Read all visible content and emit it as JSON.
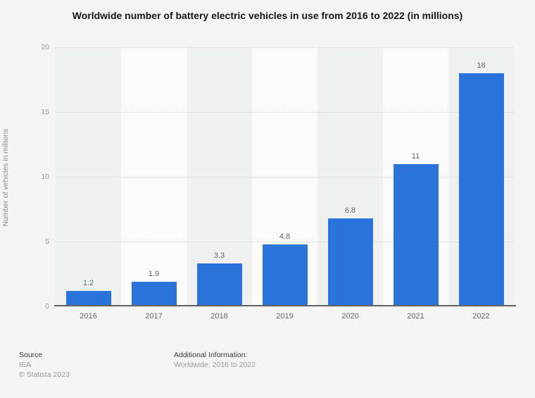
{
  "title": "Worldwide number of battery electric vehicles in use from 2016 to 2022 (in millions)",
  "chart_data": {
    "type": "bar",
    "title": "Worldwide number of battery electric vehicles in use from 2016 to 2022 (in millions)",
    "categories": [
      "2016",
      "2017",
      "2018",
      "2019",
      "2020",
      "2021",
      "2022"
    ],
    "values": [
      1.2,
      1.9,
      3.3,
      4.8,
      6.8,
      11,
      18
    ],
    "value_labels": [
      "1.2",
      "1.9",
      "3.3",
      "4.8",
      "6.8",
      "11",
      "18"
    ],
    "xlabel": "",
    "ylabel": "Number of vehicles in millions",
    "ylim": [
      0,
      20
    ],
    "yticks": [
      0,
      5,
      10,
      15,
      20
    ],
    "grid": "horizontal dotted gridlines at 5, 10, 15, 20",
    "legend": "none",
    "bar_color": "#2b74dc",
    "band_color_odd": "#eff0f0",
    "band_color_even": "#fafafa",
    "value_label_color": "#666666",
    "tick_label_color": "#999999"
  },
  "footer": {
    "source_label": "Source",
    "source_value": "IEA",
    "copyright": "© Statista 2023",
    "additional_label": "Additional Information:",
    "additional_value": "Worldwide; 2016 to 2022"
  }
}
